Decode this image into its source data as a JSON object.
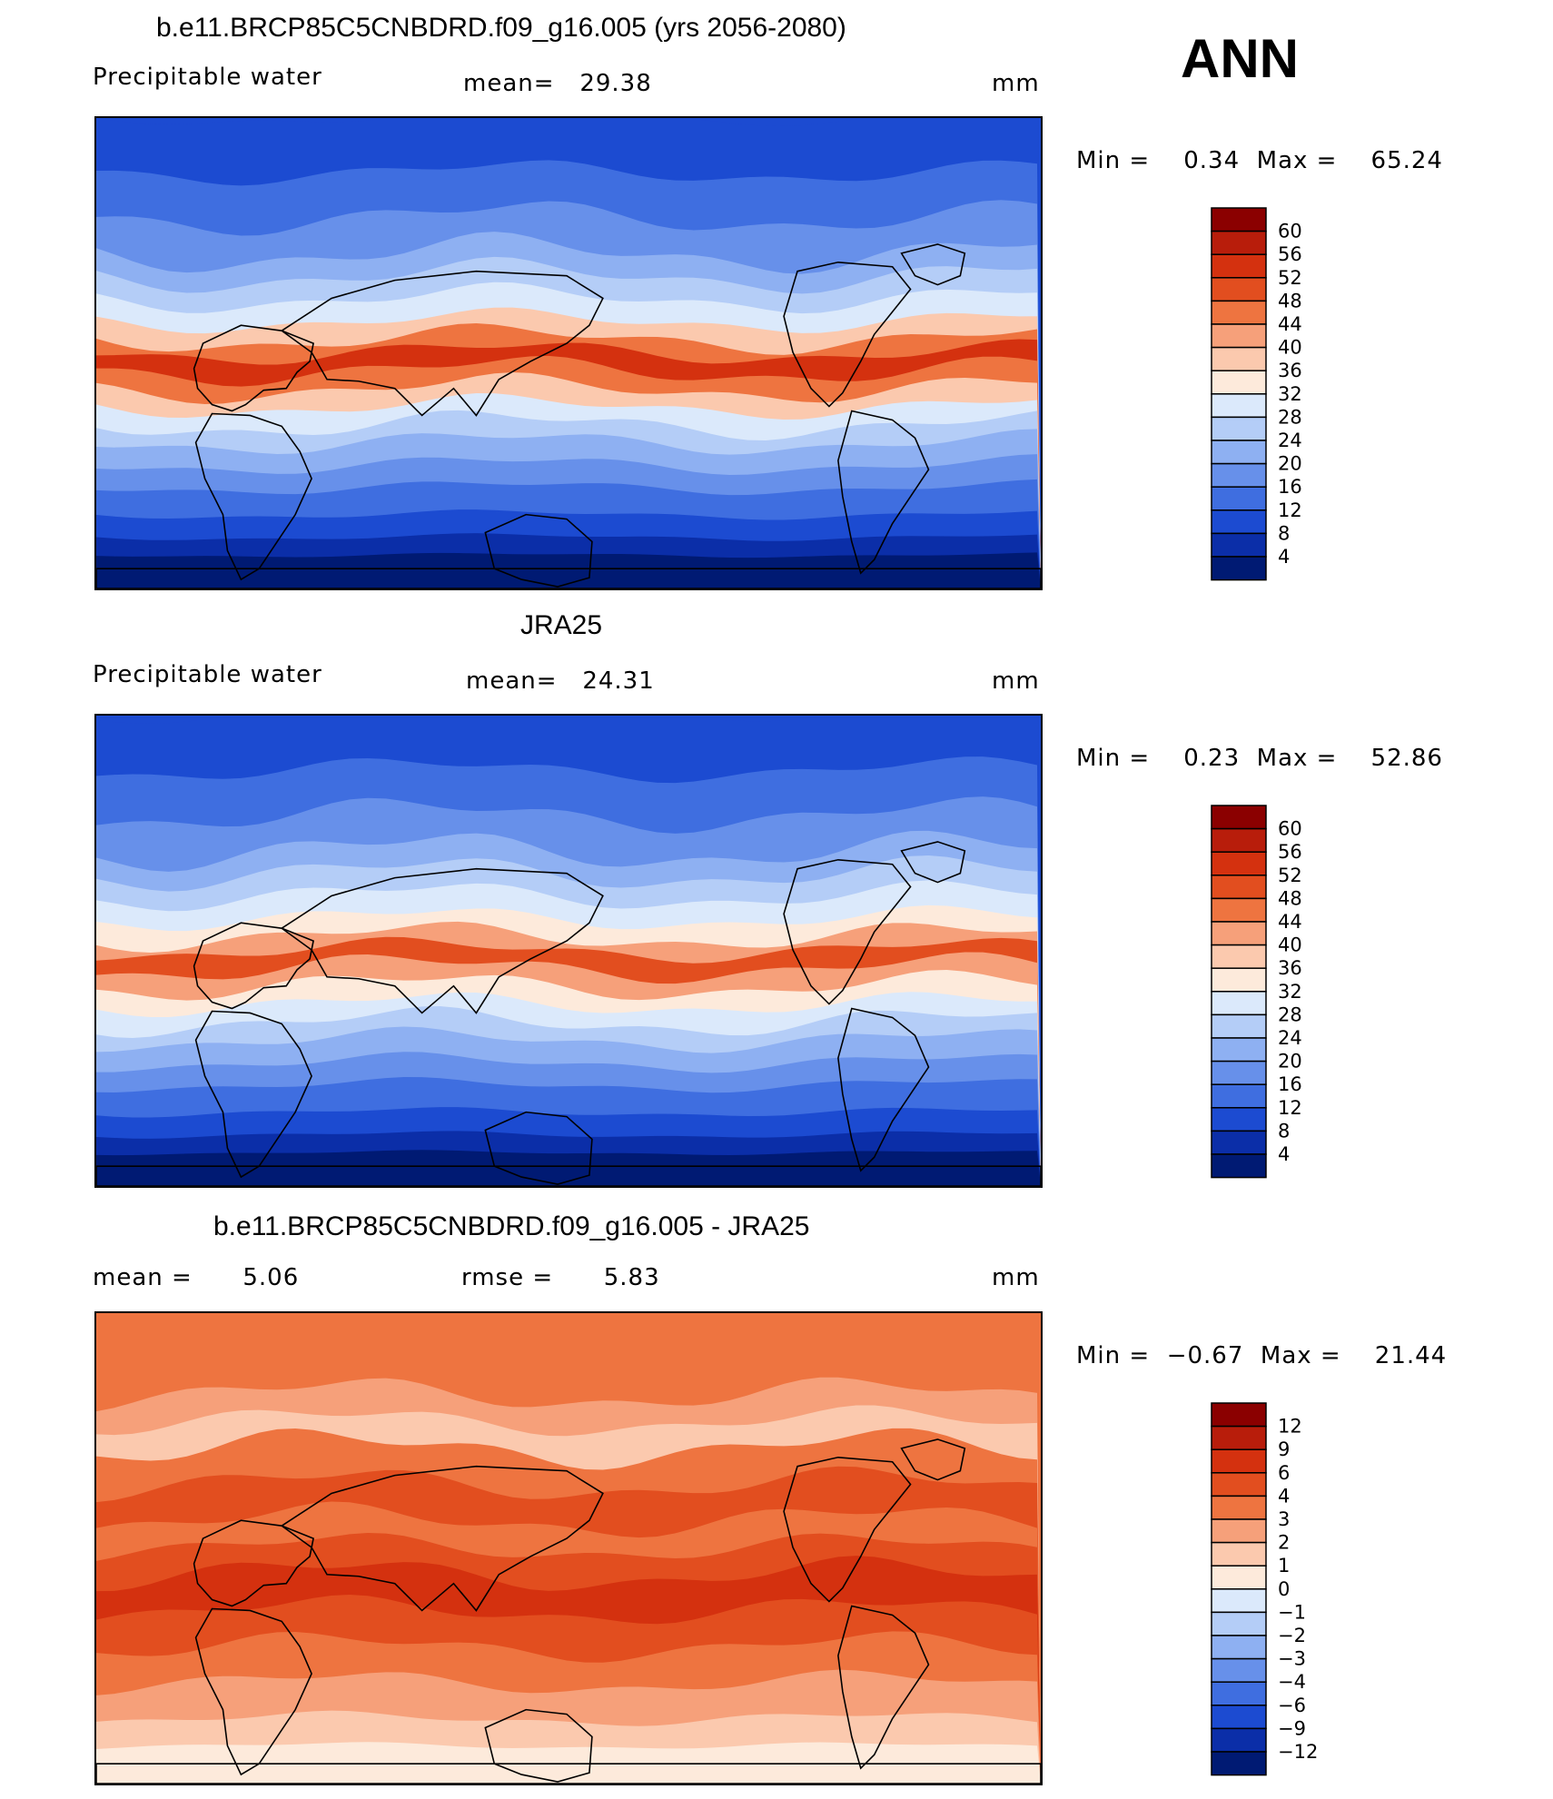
{
  "season": "ANN",
  "panels": [
    {
      "title": "b.e11.BRCP85C5CNBDRD.f09_g16.005 (yrs 2056-2080)",
      "left_label": "Precipitable water",
      "center_label": "mean=   29.38",
      "units": "mm",
      "minmax": "Min =    0.34  Max =    65.24",
      "colorbar": {
        "levels": [
          "60",
          "56",
          "52",
          "48",
          "44",
          "40",
          "36",
          "32",
          "28",
          "24",
          "20",
          "16",
          "12",
          "8",
          "4"
        ],
        "colors": [
          "#8b0000",
          "#b81d0b",
          "#d4310f",
          "#e24e1f",
          "#ee7440",
          "#f6a07a",
          "#fbc9ae",
          "#fdeadb",
          "#dbe9fb",
          "#b4cdf7",
          "#8eb0f2",
          "#6790ea",
          "#3f6ee0",
          "#1c4bd1",
          "#0b2ea8",
          "#001a73"
        ]
      }
    },
    {
      "title": "JRA25",
      "left_label": "Precipitable water",
      "center_label": "mean=   24.31",
      "units": "mm",
      "minmax": "Min =    0.23  Max =    52.86",
      "colorbar": {
        "levels": [
          "60",
          "56",
          "52",
          "48",
          "44",
          "40",
          "36",
          "32",
          "28",
          "24",
          "20",
          "16",
          "12",
          "8",
          "4"
        ],
        "colors": [
          "#8b0000",
          "#b81d0b",
          "#d4310f",
          "#e24e1f",
          "#ee7440",
          "#f6a07a",
          "#fbc9ae",
          "#fdeadb",
          "#dbe9fb",
          "#b4cdf7",
          "#8eb0f2",
          "#6790ea",
          "#3f6ee0",
          "#1c4bd1",
          "#0b2ea8",
          "#001a73"
        ]
      }
    },
    {
      "title": "b.e11.BRCP85C5CNBDRD.f09_g16.005 - JRA25",
      "left_label": "mean =      5.06",
      "center_label": "rmse =      5.83",
      "units": "mm",
      "minmax": "Min =  −0.67  Max =    21.44",
      "colorbar": {
        "levels": [
          "12",
          "9",
          "6",
          "4",
          "3",
          "2",
          "1",
          "0",
          "−1",
          "−2",
          "−3",
          "−4",
          "−6",
          "−9",
          "−12"
        ],
        "colors": [
          "#8b0000",
          "#b81d0b",
          "#d4310f",
          "#e24e1f",
          "#ee7440",
          "#f6a07a",
          "#fbc9ae",
          "#fdeadb",
          "#dbe9fb",
          "#b4cdf7",
          "#8eb0f2",
          "#6790ea",
          "#3f6ee0",
          "#1c4bd1",
          "#0b2ea8",
          "#001a73"
        ]
      }
    }
  ]
}
